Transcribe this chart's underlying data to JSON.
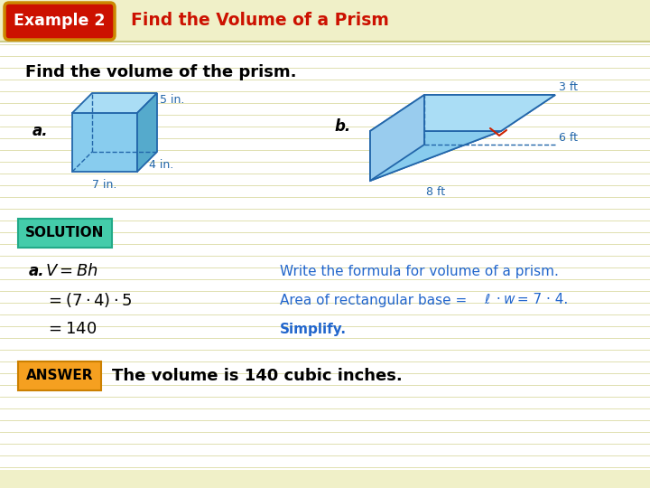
{
  "bg_color": "#ffffff",
  "header_bg": "#f0f0c8",
  "example_pill_bg": "#cc1100",
  "example_pill_border": "#cc8800",
  "example_pill_text": "Example 2",
  "example_pill_text_color": "#ffffff",
  "header_title": "Find the Volume of a Prism",
  "header_title_color": "#cc1100",
  "main_question": "Find the volume of the prism.",
  "main_question_color": "#000000",
  "label_a": "a.",
  "label_b": "b.",
  "label_color": "#000000",
  "solution_box_bg": "#44ccaa",
  "solution_box_border": "#22aa88",
  "solution_box_text": "SOLUTION",
  "solution_box_text_color": "#000000",
  "answer_box_bg": "#f5a020",
  "answer_box_border": "#cc8000",
  "answer_box_text": "ANSWER",
  "answer_box_text_color": "#000000",
  "hint_color": "#2266cc",
  "step_color": "#000000",
  "prism_face_front": "#88ccee",
  "prism_face_top": "#aaddf5",
  "prism_face_right": "#55aacc",
  "prism_edge": "#2266aa",
  "dim_color": "#2266aa",
  "answer_text": "The volume is 140 cubic inches.",
  "hint1": "Write the formula for volume of a prism.",
  "hint2_pre": "Area of rectangular base = ",
  "hint2_post": "= 7 · 4.",
  "hint3": "Simplify.",
  "line_color": "#e0e0b0"
}
